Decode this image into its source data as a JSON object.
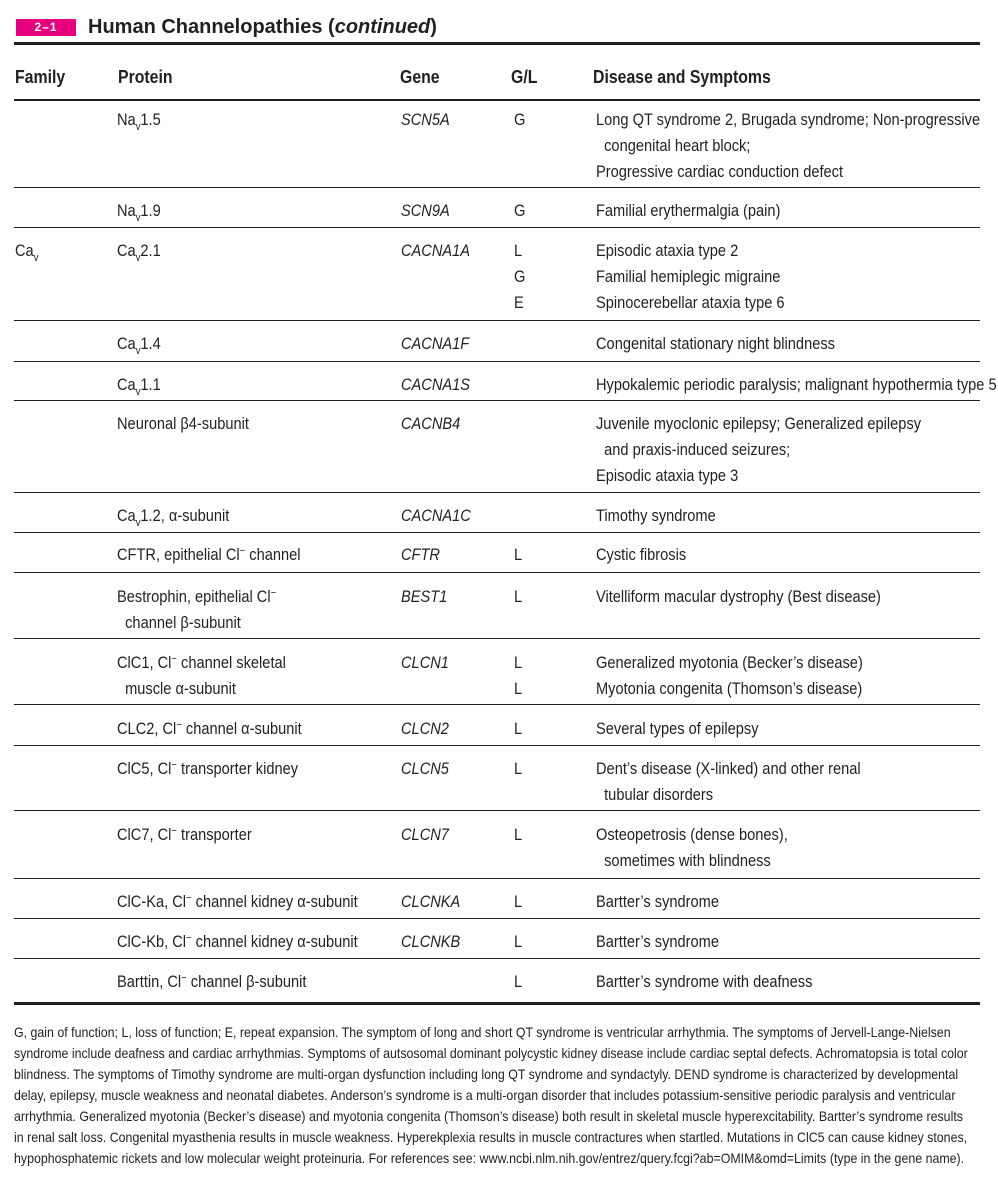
{
  "header": {
    "badge": "2–1",
    "title_main": "Human Channelopathies (",
    "title_italic": "continued",
    "title_end": ")"
  },
  "columns": {
    "family": "Family",
    "protein": "Protein",
    "gene": "Gene",
    "gl": "G/L",
    "disease": "Disease and Symptoms"
  },
  "rows": [
    {
      "family": "",
      "protein_html": "Na<sub>v</sub>1.5",
      "gene": "SCN5A",
      "gl": [
        "G"
      ],
      "disease": [
        "Long QT syndrome 2, Brugada syndrome; Non-progressive",
        "&nbsp;&nbsp;congenital heart block;",
        "Progressive cardiac conduction defect"
      ]
    },
    {
      "family": "",
      "protein_html": "Na<sub>v</sub>1.9",
      "gene": "SCN9A",
      "gl": [
        "G"
      ],
      "disease": [
        "Familial erythermalgia (pain)"
      ]
    },
    {
      "family_html": "Ca<sub>v</sub>",
      "protein_html": "Ca<sub>v</sub>2.1",
      "gene": "CACNA1A",
      "gl": [
        "L",
        "G",
        "E"
      ],
      "disease": [
        "Episodic ataxia type 2",
        "Familial hemiplegic migraine",
        "Spinocerebellar ataxia type 6"
      ]
    },
    {
      "family": "",
      "protein_html": "Ca<sub>v</sub>1.4",
      "gene": "CACNA1F",
      "gl": [],
      "disease": [
        "Congenital stationary night blindness"
      ]
    },
    {
      "family": "",
      "protein_html": "Ca<sub>v</sub>1.1",
      "gene": "CACNA1S",
      "gl": [],
      "disease": [
        "Hypokalemic periodic paralysis; malignant hypothermia type 5"
      ]
    },
    {
      "family": "",
      "protein_html": "Neuronal β4-subunit",
      "gene": "CACNB4",
      "gl": [],
      "disease": [
        "Juvenile myoclonic epilepsy; Generalized epilepsy",
        "&nbsp;&nbsp;and praxis-induced seizures;",
        "Episodic ataxia type 3"
      ]
    },
    {
      "family": "",
      "protein_html": "Ca<sub>v</sub>1.2, α-subunit",
      "gene": "CACNA1C",
      "gl": [],
      "disease": [
        "Timothy syndrome"
      ]
    },
    {
      "family": "",
      "protein_html": "CFTR, epithelial Cl<sup>−</sup> channel",
      "gene": "CFTR",
      "gl": [
        "L"
      ],
      "disease": [
        "Cystic fibrosis"
      ]
    },
    {
      "family": "",
      "protein_html": "Bestrophin, epithelial Cl<sup>−</sup><br>&nbsp;&nbsp;channel β-subunit",
      "gene": "BEST1",
      "gl": [
        "L"
      ],
      "disease": [
        "Vitelliform macular dystrophy (Best disease)"
      ]
    },
    {
      "family": "",
      "protein_html": "ClC1, Cl<sup>−</sup> channel skeletal<br>&nbsp;&nbsp;muscle α-subunit",
      "gene": "CLCN1",
      "gl": [
        "L",
        "L"
      ],
      "disease": [
        "Generalized myotonia (Becker’s disease)",
        "Myotonia congenita (Thomson’s disease)"
      ]
    },
    {
      "family": "",
      "protein_html": "CLC2, Cl<sup>−</sup> channel α-subunit",
      "gene": "CLCN2",
      "gl": [
        "L"
      ],
      "disease": [
        "Several types of epilepsy"
      ]
    },
    {
      "family": "",
      "protein_html": "ClC5, Cl<sup>−</sup> transporter kidney",
      "gene": "CLCN5",
      "gl": [
        "L"
      ],
      "disease": [
        "Dent’s disease (X-linked) and other renal",
        "&nbsp;&nbsp;tubular disorders"
      ]
    },
    {
      "family": "",
      "protein_html": "ClC7, Cl<sup>−</sup> transporter",
      "gene": "CLCN7",
      "gl": [
        "L"
      ],
      "disease": [
        "Osteopetrosis (dense bones),",
        "&nbsp;&nbsp;sometimes with blindness"
      ]
    },
    {
      "family": "",
      "protein_html": "ClC-Ka, Cl<sup>−</sup> channel kidney α-subunit",
      "gene": "CLCNKA",
      "gl": [
        "L"
      ],
      "disease": [
        "Bartter’s syndrome"
      ]
    },
    {
      "family": "",
      "protein_html": "ClC-Kb, Cl<sup>−</sup> channel kidney α-subunit",
      "gene": "CLCNKB",
      "gl": [
        "L"
      ],
      "disease": [
        "Bartter’s syndrome"
      ]
    },
    {
      "family": "",
      "protein_html": "Barttin, Cl<sup>−</sup> channel β-subunit",
      "gene": "",
      "gl": [
        "L"
      ],
      "disease": [
        "Bartter’s syndrome with deafness"
      ]
    }
  ],
  "footnote": "G, gain of function; L, loss of function; E, repeat expansion. The symptom of long and short QT syndrome is ventricular arrhythmia. The symptoms of Jervell-Lange-Nielsen syndrome include deafness and cardiac arrhythmias. Symptoms of autsosomal dominant polycystic kidney disease include cardiac septal defects. Achromatopsia is total color blindness. The symptoms of Timothy syndrome are multi-organ dysfunction including long QT syndrome and syndactyly. DEND syndrome is characterized by developmental delay, epilepsy, muscle weakness and neonatal diabetes. Anderson’s syndrome is a multi-organ disorder that includes potassium-sensitive periodic paralysis and ventricular arrhythmia. Generalized myotonia (Becker’s disease) and myotonia congenita (Thomson’s disease) both result in skeletal muscle hyperexcitability. Bartter’s syndrome results in renal salt loss. Congenital myasthenia results in muscle weakness. Hyperekplexia results in muscle contractures when startled. Mutations in ClC5 can cause kidney stones, hypophosphatemic rickets and low molecular weight proteinuria. For references see: www.ncbi.nlm.nih.gov/entrez/query.fcgi?ab=OMIM&omd=Limits (type in the gene name)."
}
